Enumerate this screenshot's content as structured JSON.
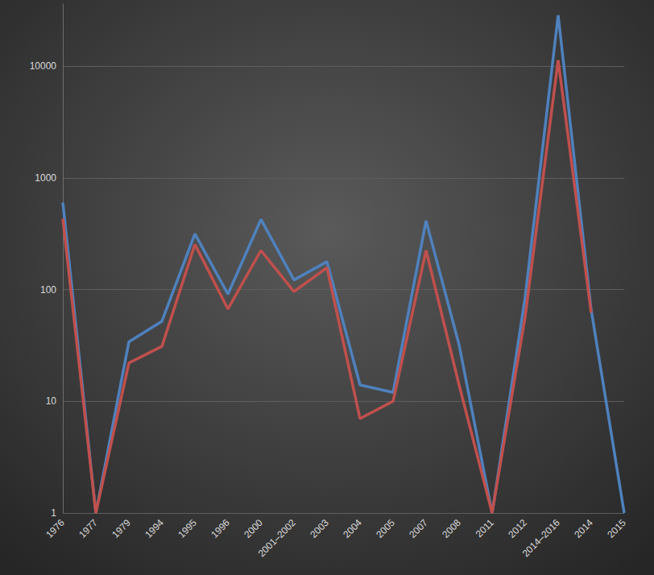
{
  "chart_data": {
    "type": "line",
    "categories": [
      "1976",
      "1977",
      "1979",
      "1994",
      "1995",
      "1996",
      "2000",
      "2001–2002",
      "2003",
      "2004",
      "2005",
      "2007",
      "2008",
      "2011",
      "2012",
      "2014–2016",
      "2014",
      "2015"
    ],
    "series": [
      {
        "color": "#4f81bd",
        "values": [
          602,
          1,
          34,
          52,
          315,
          91,
          425,
          122,
          178,
          14,
          12,
          413,
          32,
          1,
          85,
          28600,
          66,
          1
        ]
      },
      {
        "color": "#c0504d",
        "values": [
          431,
          1,
          22,
          31,
          254,
          67,
          224,
          96,
          157,
          7,
          10,
          224,
          14,
          1,
          57,
          11300,
          62,
          null
        ]
      }
    ],
    "log": "y",
    "ylim": [
      1,
      36000
    ],
    "yticks": [
      1,
      10,
      100,
      1000,
      10000
    ],
    "grid": true
  }
}
